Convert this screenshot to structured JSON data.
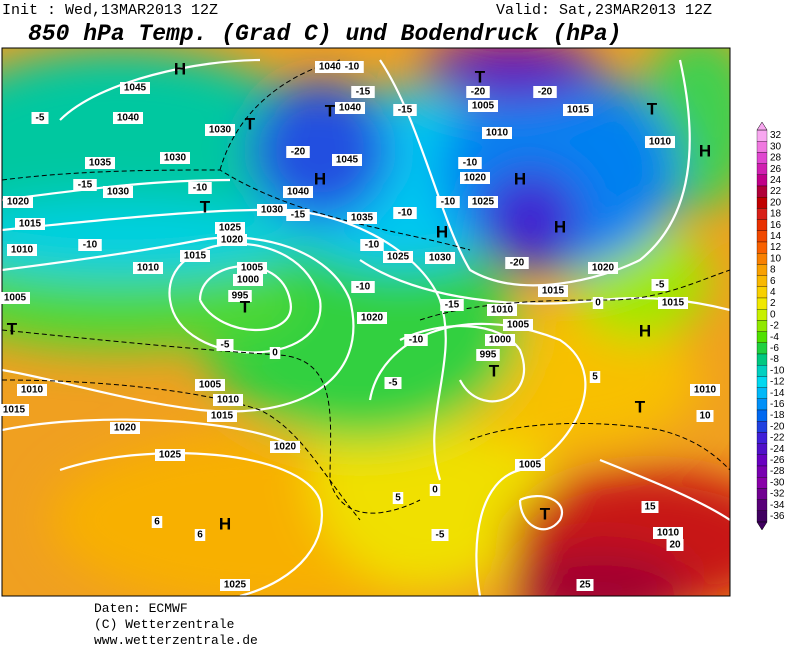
{
  "header": {
    "init": "Init : Wed,13MAR2013 12Z",
    "valid": "Valid: Sat,23MAR2013 12Z",
    "title": "850 hPa Temp. (Grad C) und Bodendruck (hPa)"
  },
  "footer": {
    "source": "Daten: ECMWF",
    "copyright": "(C) Wetterzentrale",
    "url": "www.wetterzentrale.de"
  },
  "colorbar": {
    "ticks": [
      32,
      30,
      28,
      26,
      24,
      22,
      20,
      18,
      16,
      14,
      12,
      10,
      8,
      6,
      4,
      2,
      0,
      -2,
      -4,
      -6,
      -8,
      -10,
      -12,
      -14,
      -16,
      -18,
      -20,
      -22,
      -24,
      -26,
      -28,
      -30,
      -32,
      -34,
      -36
    ],
    "colors": [
      "#f8a8f0",
      "#f078e0",
      "#e048d0",
      "#d020b0",
      "#c00088",
      "#b00038",
      "#c00000",
      "#d82018",
      "#e83000",
      "#f04800",
      "#f86000",
      "#f88000",
      "#f8a000",
      "#f8b800",
      "#f8d000",
      "#f0e800",
      "#c8f000",
      "#90e800",
      "#50e000",
      "#20d040",
      "#00c880",
      "#00d0c0",
      "#00d8f0",
      "#00b8f8",
      "#0090f8",
      "#0068f0",
      "#2040e0",
      "#4020d8",
      "#5010c8",
      "#6800c0",
      "#7800b0",
      "#8800a8",
      "#700090",
      "#580078",
      "#400060"
    ]
  },
  "map_labels": [
    "H",
    "1045",
    "1040",
    "-5",
    "1035",
    "1030",
    "-15",
    "1030",
    "-10",
    "T",
    "1020",
    "1015",
    "-10",
    "1010",
    "1025",
    "1020",
    "1015",
    "1010",
    "1005",
    "1000",
    "995",
    "T",
    "1005",
    "T",
    "-5",
    "0",
    "1010",
    "1005",
    "1015",
    "1010",
    "1015",
    "1020",
    "1025",
    "1020",
    "6",
    "H",
    "6",
    "1025",
    "T",
    "1030",
    "-20",
    "1045",
    "H",
    "1040",
    "1030",
    "-15",
    "1035",
    "-10",
    "-10",
    "1025",
    "T",
    "1040",
    "-15",
    "1040",
    "-10",
    "-15",
    "T",
    "-20",
    "1005",
    "-20",
    "1015",
    "1010",
    "T",
    "1010",
    "H",
    "-10",
    "1020",
    "H",
    "-10",
    "1025",
    "H",
    "H",
    "1030",
    "-20",
    "1020",
    "-5",
    "1015",
    "0",
    "1015",
    "-15",
    "-10",
    "1020",
    "1010",
    "1005",
    "-10",
    "1000",
    "H",
    "995",
    "T",
    "-5",
    "5",
    "T",
    "1010",
    "10",
    "1005",
    "15",
    "T",
    "1010",
    "20",
    "25",
    "0",
    "-5",
    "5"
  ]
}
